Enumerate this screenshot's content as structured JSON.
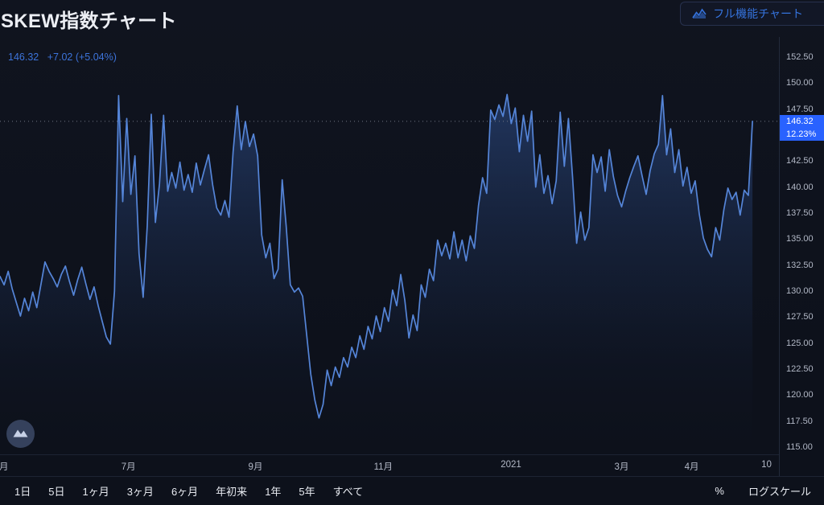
{
  "header": {
    "title": "SKEW指数チャート",
    "full_chart_button": "フル機能チャート"
  },
  "legend": {
    "last_price": "146.32",
    "change": "+7.02",
    "change_percent": "(+5.04%)"
  },
  "price_axis": {
    "labels": [
      "152.50",
      "150.00",
      "147.50",
      "142.50",
      "140.00",
      "137.50",
      "135.00",
      "132.50",
      "130.00",
      "127.50",
      "125.00",
      "122.50",
      "120.00",
      "117.50",
      "115.00"
    ],
    "current_price_badge": "146.32",
    "current_percent_badge": "12.23%"
  },
  "time_axis": {
    "labels": [
      {
        "text": "月",
        "f": 0.005
      },
      {
        "text": "7月",
        "f": 0.165
      },
      {
        "text": "9月",
        "f": 0.328
      },
      {
        "text": "11月",
        "f": 0.492
      },
      {
        "text": "2021",
        "f": 0.656
      },
      {
        "text": "3月",
        "f": 0.798
      },
      {
        "text": "4月",
        "f": 0.888
      },
      {
        "text": "10",
        "f": 0.984
      }
    ]
  },
  "toolbar": {
    "ranges": [
      "1日",
      "5日",
      "1ヶ月",
      "3ヶ月",
      "6ヶ月",
      "年初来",
      "1年",
      "5年",
      "すべて"
    ],
    "percent_label": "%",
    "log_scale_label": "ログスケール"
  },
  "icons": {
    "full_chart_icon": "area-chart-icon",
    "chart_type_icon": "area-chart-icon"
  },
  "colors": {
    "accent_blue": "#2962ff",
    "line_blue": "#5585d8",
    "text_blue": "#3573dd",
    "axis_text": "#b2b8c6",
    "background": "#0d111b"
  },
  "chart_data": {
    "type": "line",
    "title": "SKEW指数チャート",
    "series_name": "SKEW",
    "current": 146.32,
    "change": 7.02,
    "change_percent": 5.04,
    "period_percent": 12.23,
    "ylim": [
      114.3,
      154.43
    ],
    "x_end_fraction": 0.966,
    "x_tick_labels": [
      "月",
      "7月",
      "9月",
      "11月",
      "2021",
      "3月",
      "4月",
      "10"
    ],
    "y_tick_values": [
      152.5,
      150.0,
      147.5,
      142.5,
      140.0,
      137.5,
      135.0,
      132.5,
      130.0,
      127.5,
      125.0,
      122.5,
      120.0,
      117.5,
      115.0
    ],
    "grid": false,
    "legend_position": "top-left",
    "values": [
      131.4,
      130.6,
      131.9,
      130.2,
      128.9,
      127.6,
      129.3,
      128.1,
      129.9,
      128.4,
      130.6,
      132.8,
      131.9,
      131.2,
      130.4,
      131.6,
      132.4,
      130.9,
      129.6,
      131.1,
      132.3,
      130.7,
      129.2,
      130.4,
      128.6,
      127.1,
      125.6,
      124.9,
      130.0,
      148.8,
      138.6,
      146.6,
      139.3,
      143.0,
      133.6,
      129.4,
      136.3,
      147.0,
      136.6,
      140.3,
      146.9,
      139.6,
      141.4,
      139.9,
      142.4,
      139.7,
      141.2,
      139.5,
      142.3,
      140.2,
      141.7,
      143.1,
      140.2,
      138.0,
      137.3,
      138.7,
      137.1,
      143.4,
      147.8,
      143.6,
      146.3,
      143.9,
      145.1,
      143.0,
      135.4,
      133.2,
      134.6,
      131.2,
      132.1,
      140.7,
      136.2,
      130.6,
      129.9,
      130.3,
      129.5,
      125.8,
      122.0,
      119.5,
      117.8,
      119.1,
      122.4,
      120.9,
      122.7,
      121.7,
      123.6,
      122.7,
      124.6,
      123.6,
      125.7,
      124.4,
      126.6,
      125.4,
      127.6,
      126.1,
      128.4,
      127.1,
      130.1,
      128.6,
      131.6,
      129.1,
      125.5,
      127.7,
      126.2,
      130.6,
      129.4,
      132.1,
      131.0,
      134.9,
      133.4,
      134.6,
      133.1,
      135.7,
      133.2,
      134.9,
      132.9,
      135.3,
      134.1,
      138.2,
      140.9,
      139.4,
      147.4,
      146.5,
      147.9,
      146.8,
      148.9,
      146.1,
      147.6,
      143.4,
      146.9,
      144.4,
      147.3,
      140.0,
      143.1,
      139.4,
      141.1,
      138.4,
      140.6,
      147.2,
      142.0,
      146.6,
      141.0,
      134.6,
      137.6,
      134.9,
      136.1,
      143.1,
      141.4,
      142.9,
      139.6,
      143.6,
      141.0,
      139.2,
      138.1,
      139.6,
      140.9,
      142.0,
      143.0,
      141.1,
      139.3,
      141.6,
      143.2,
      144.1,
      148.8,
      143.1,
      145.6,
      141.4,
      143.6,
      140.1,
      141.9,
      139.4,
      140.6,
      137.4,
      135.1,
      134.0,
      133.3,
      136.1,
      134.9,
      137.8,
      139.9,
      138.8,
      139.5,
      137.3,
      139.7,
      139.2,
      146.32
    ]
  }
}
